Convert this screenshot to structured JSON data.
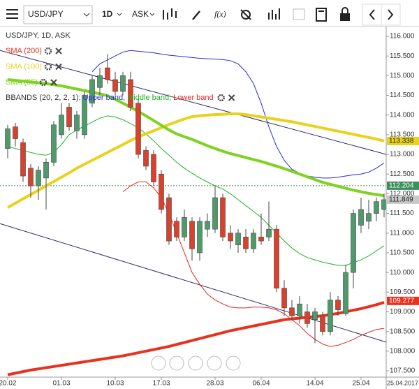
{
  "toolbar": {
    "symbol": "USD/JPY",
    "interval": "1D",
    "price_side": "ASK",
    "function": "f(x)"
  },
  "chart_data": {
    "type": "candlestick",
    "title": "USD/JPY, 1D, ASK",
    "categories": [
      "20.02",
      null,
      null,
      null,
      null,
      null,
      null,
      "01.03",
      null,
      null,
      null,
      null,
      null,
      null,
      "10.03",
      null,
      null,
      null,
      null,
      null,
      "17.03",
      null,
      null,
      null,
      null,
      null,
      null,
      "28.03",
      null,
      null,
      null,
      null,
      null,
      "06.04",
      null,
      null,
      null,
      null,
      null,
      null,
      "14.04",
      null,
      null,
      null,
      null,
      null,
      "25.04",
      null,
      null,
      null
    ],
    "x_end_label": "25.04.2017",
    "open": [
      113.15,
      113.7,
      113.3,
      112.65,
      112.2,
      112.4,
      112.8,
      113.5,
      114.2,
      113.6,
      113.5,
      114.3,
      114.7,
      115.2,
      114.9,
      114.6,
      114.9,
      114.3,
      113.1,
      113.0,
      112.5,
      111.9,
      111.3,
      110.9,
      111.3,
      110.5,
      111.1,
      111.1,
      111.9,
      111.0,
      110.7,
      110.9,
      110.6,
      110.9,
      110.9,
      111.1,
      109.6,
      109.1,
      108.9,
      109.0,
      108.8,
      108.9,
      108.5,
      109.3,
      108.95,
      110.0,
      111.2,
      111.3,
      111.5,
      111.6
    ],
    "high": [
      113.75,
      113.8,
      113.4,
      112.75,
      112.7,
      112.9,
      113.85,
      114.3,
      114.3,
      114.1,
      114.6,
      115.0,
      115.2,
      115.55,
      115.1,
      115.1,
      115.1,
      114.4,
      113.2,
      113.1,
      112.6,
      112.0,
      111.4,
      111.6,
      111.4,
      111.4,
      111.5,
      112.2,
      112.0,
      111.2,
      111.1,
      111.1,
      111.1,
      111.5,
      111.8,
      111.2,
      109.8,
      109.3,
      109.4,
      109.2,
      109.1,
      109.0,
      109.5,
      109.4,
      110.2,
      111.6,
      111.9,
      111.85,
      111.9,
      112.0
    ],
    "low": [
      112.9,
      113.2,
      112.3,
      111.9,
      111.85,
      111.6,
      112.7,
      113.4,
      113.6,
      113.4,
      113.4,
      114.2,
      114.5,
      114.8,
      114.5,
      114.5,
      114.1,
      112.9,
      112.6,
      112.2,
      111.5,
      110.7,
      110.8,
      110.8,
      110.3,
      110.3,
      110.9,
      111.0,
      110.8,
      110.6,
      110.5,
      110.5,
      110.5,
      110.7,
      110.8,
      109.5,
      108.9,
      108.8,
      108.7,
      108.6,
      108.2,
      108.4,
      108.4,
      108.9,
      108.9,
      109.6,
      111.0,
      111.1,
      111.3,
      111.4
    ],
    "close": [
      113.65,
      113.4,
      112.45,
      112.2,
      112.6,
      112.8,
      113.75,
      114.0,
      113.7,
      114.0,
      114.5,
      114.9,
      115.0,
      114.9,
      114.6,
      115.0,
      114.2,
      113.0,
      112.7,
      112.3,
      111.6,
      110.8,
      110.9,
      111.4,
      110.6,
      111.3,
      111.3,
      111.9,
      110.9,
      110.8,
      111.0,
      110.6,
      111.0,
      110.8,
      111.1,
      109.6,
      109.1,
      108.9,
      109.2,
      108.7,
      109.0,
      108.5,
      109.3,
      109.05,
      110.0,
      111.5,
      111.6,
      111.5,
      111.8,
      111.849
    ],
    "up_color": "#4e9a6a",
    "down_color": "#d9412c",
    "overlays": [
      {
        "name": "SMA (200)",
        "color": "#e8321e",
        "width": 4,
        "values": [
          107.4,
          107.44,
          107.48,
          107.52,
          107.55,
          107.58,
          107.61,
          107.64,
          107.67,
          107.7,
          107.73,
          107.76,
          107.79,
          107.82,
          107.85,
          107.88,
          107.92,
          107.96,
          108.0,
          108.04,
          108.08,
          108.12,
          108.17,
          108.22,
          108.27,
          108.32,
          108.37,
          108.42,
          108.47,
          108.52,
          108.56,
          108.6,
          108.64,
          108.68,
          108.72,
          108.76,
          108.8,
          108.82,
          108.84,
          108.86,
          108.88,
          108.9,
          108.93,
          108.96,
          109.0,
          109.04,
          109.08,
          109.13,
          109.18,
          109.24
        ]
      },
      {
        "name": "SMA (100)",
        "color": "#e8d21e",
        "width": 4,
        "values": [
          111.65,
          111.76,
          111.87,
          111.98,
          112.09,
          112.2,
          112.31,
          112.42,
          112.53,
          112.65,
          112.75,
          112.85,
          112.95,
          113.05,
          113.15,
          113.25,
          113.35,
          113.45,
          113.52,
          113.6,
          113.68,
          113.76,
          113.83,
          113.9,
          113.96,
          113.98,
          114.0,
          114.01,
          114.02,
          114.03,
          114.03,
          114.01,
          113.98,
          113.95,
          113.92,
          113.89,
          113.86,
          113.83,
          113.79,
          113.75,
          113.71,
          113.67,
          113.63,
          113.59,
          113.55,
          113.51,
          113.47,
          113.43,
          113.39,
          113.34
        ]
      },
      {
        "name": "SMA (55)",
        "color": "#7ed321",
        "width": 4,
        "values": [
          114.9,
          114.88,
          114.86,
          114.84,
          114.82,
          114.8,
          114.77,
          114.74,
          114.7,
          114.66,
          114.62,
          114.58,
          114.54,
          114.49,
          114.4,
          114.3,
          114.2,
          114.09,
          113.98,
          113.86,
          113.74,
          113.62,
          113.52,
          113.45,
          113.38,
          113.3,
          113.22,
          113.15,
          113.08,
          113.02,
          112.97,
          112.92,
          112.87,
          112.82,
          112.76,
          112.7,
          112.64,
          112.57,
          112.5,
          112.43,
          112.36,
          112.29,
          112.24,
          112.19,
          112.14,
          112.09,
          112.05,
          112.01,
          111.98,
          111.95
        ]
      }
    ],
    "bands": {
      "label": "BBANDS (20, 2, 2, 1):",
      "series": [
        {
          "name": "Upper band,",
          "color": "#2a2ad8",
          "values": [
            null,
            null,
            null,
            null,
            null,
            null,
            null,
            null,
            null,
            null,
            null,
            115.1,
            115.3,
            115.4,
            115.5,
            115.6,
            115.64,
            115.62,
            115.6,
            115.58,
            115.55,
            115.52,
            115.5,
            115.48,
            115.46,
            115.44,
            115.43,
            115.42,
            115.41,
            115.38,
            115.3,
            115.1,
            114.8,
            114.3,
            113.7,
            113.2,
            112.85,
            112.62,
            112.52,
            112.45,
            112.42,
            112.4,
            112.4,
            112.42,
            112.45,
            112.48,
            112.5,
            112.55,
            112.65,
            112.78
          ]
        },
        {
          "name": "Middle band,",
          "color": "#22b022",
          "values": [
            113.2,
            113.15,
            113.1,
            113.05,
            113.0,
            112.98,
            113.05,
            113.25,
            113.5,
            113.62,
            113.72,
            113.82,
            113.92,
            113.98,
            113.95,
            113.88,
            113.78,
            113.68,
            113.52,
            113.35,
            113.15,
            112.98,
            112.8,
            112.65,
            112.52,
            112.4,
            112.3,
            112.2,
            112.12,
            112.0,
            111.85,
            111.7,
            111.55,
            111.4,
            111.2,
            111.0,
            110.8,
            110.62,
            110.48,
            110.38,
            110.32,
            110.26,
            110.22,
            110.18,
            110.18,
            110.25,
            110.32,
            110.42,
            110.55,
            110.68
          ]
        },
        {
          "name": "Lower band",
          "color": "#e0281e",
          "values": [
            null,
            null,
            null,
            null,
            null,
            null,
            null,
            null,
            null,
            null,
            null,
            null,
            null,
            null,
            null,
            112.05,
            112.2,
            112.3,
            112.3,
            112.15,
            111.9,
            111.5,
            111.0,
            110.5,
            110.0,
            109.7,
            109.45,
            109.3,
            109.2,
            109.12,
            109.1,
            109.1,
            109.12,
            109.12,
            109.1,
            109.05,
            108.95,
            108.8,
            108.65,
            108.45,
            108.3,
            108.18,
            108.12,
            108.15,
            108.22,
            108.3,
            108.4,
            108.48,
            108.55,
            108.58
          ]
        }
      ]
    },
    "trendlines": [
      {
        "color": "#2a2a66",
        "values": [
          115.64,
          113.0
        ]
      },
      {
        "color": "#2a2a66",
        "values": [
          111.24,
          108.23
        ]
      }
    ],
    "crosshair": {
      "value": 112.204,
      "color": "#3f8f5e"
    },
    "price_tags": [
      {
        "value": 113.338,
        "color": "#e8d21e"
      },
      {
        "value": 112.204,
        "color": "#3d8f5c"
      },
      {
        "value": 111.849,
        "color": "#c8c8c8"
      },
      {
        "value": 109.277,
        "color": "#e8321e"
      }
    ],
    "ylim": [
      107.5,
      116
    ],
    "yticks": [
      {
        "value": 107.5,
        "label": "107.500"
      },
      {
        "value": 108,
        "label": "108.000"
      },
      {
        "value": 108.5,
        "label": "108.500"
      },
      {
        "value": 109,
        "label": "109.000"
      },
      {
        "value": 109.5,
        "label": "109.500"
      },
      {
        "value": 110,
        "label": "110.000"
      },
      {
        "value": 110.5,
        "label": "110.500"
      },
      {
        "value": 111,
        "label": "111.000"
      },
      {
        "value": 111.5,
        "label": "111.500"
      },
      {
        "value": 112,
        "label": "112.000"
      },
      {
        "value": 112.5,
        "label": "112.500"
      },
      {
        "value": 113,
        "label": "113.000"
      },
      {
        "value": 113.5,
        "label": "113.500"
      },
      {
        "value": 114,
        "label": "114.000"
      },
      {
        "value": 114.5,
        "label": "114.500"
      },
      {
        "value": 115,
        "label": "115.000"
      },
      {
        "value": 115.5,
        "label": "115.500"
      },
      {
        "value": 116,
        "label": "116.000"
      }
    ]
  }
}
